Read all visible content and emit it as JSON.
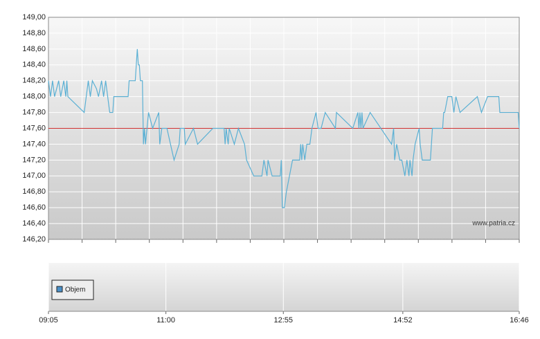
{
  "chart_data": {
    "type": "line",
    "x": [
      "09:05",
      "09:07",
      "09:09",
      "09:11",
      "09:13",
      "09:15",
      "09:17",
      "09:20",
      "09:22",
      "09:23",
      "09:24",
      "09:40",
      "09:44",
      "09:46",
      "09:48",
      "09:52",
      "09:54",
      "09:57",
      "09:59",
      "10:01",
      "10:03",
      "10:05",
      "10:08",
      "10:09",
      "10:23",
      "10:24",
      "10:30",
      "10:32",
      "10:33",
      "10:34",
      "10:35",
      "10:37",
      "10:38",
      "10:39",
      "10:40",
      "10:43",
      "10:47",
      "10:53",
      "10:54",
      "10:56",
      "11:01",
      "11:08",
      "11:13",
      "11:14",
      "11:18",
      "11:19",
      "11:27",
      "11:31",
      "11:46",
      "11:57",
      "11:58",
      "11:59",
      "12:01",
      "12:02",
      "12:07",
      "12:11",
      "12:17",
      "12:19",
      "12:26",
      "12:34",
      "12:36",
      "12:39",
      "12:40",
      "12:44",
      "12:52",
      "12:53",
      "12:54",
      "12:56",
      "12:58",
      "13:04",
      "13:11",
      "13:12",
      "13:13",
      "13:14",
      "13:16",
      "13:18",
      "13:21",
      "13:23",
      "13:27",
      "13:29",
      "13:32",
      "13:36",
      "13:46",
      "13:47",
      "14:03",
      "14:08",
      "14:09",
      "14:10",
      "14:11",
      "14:12",
      "14:13",
      "14:20",
      "14:41",
      "14:43",
      "14:44",
      "14:46",
      "14:49",
      "14:51",
      "14:54",
      "14:56",
      "14:58",
      "14:59",
      "15:01",
      "15:02",
      "15:04",
      "15:08",
      "15:09",
      "15:11",
      "15:19",
      "15:20",
      "15:21",
      "15:31",
      "15:32",
      "15:33",
      "15:36",
      "15:40",
      "15:42",
      "15:44",
      "15:48",
      "16:05",
      "16:09",
      "16:15",
      "16:26",
      "16:27",
      "16:45",
      "16:46"
    ],
    "values": [
      148.2,
      148.0,
      148.2,
      148.0,
      148.1,
      148.2,
      148.0,
      148.2,
      148.0,
      148.2,
      148.0,
      147.8,
      148.2,
      148.0,
      148.2,
      148.1,
      148.0,
      148.2,
      148.0,
      148.2,
      148.0,
      147.8,
      147.8,
      148.0,
      148.0,
      148.2,
      148.2,
      148.6,
      148.4,
      148.4,
      148.2,
      148.2,
      147.4,
      147.6,
      147.4,
      147.8,
      147.6,
      147.8,
      147.4,
      147.6,
      147.6,
      147.2,
      147.4,
      147.6,
      147.6,
      147.4,
      147.6,
      147.4,
      147.6,
      147.6,
      147.4,
      147.6,
      147.4,
      147.6,
      147.4,
      147.6,
      147.4,
      147.2,
      147.0,
      147.0,
      147.2,
      147.0,
      147.2,
      147.0,
      147.0,
      147.2,
      146.6,
      146.6,
      146.8,
      147.2,
      147.2,
      147.4,
      147.2,
      147.4,
      147.2,
      147.4,
      147.4,
      147.6,
      147.8,
      147.6,
      147.6,
      147.8,
      147.6,
      147.8,
      147.6,
      147.8,
      147.6,
      147.8,
      147.6,
      147.8,
      147.6,
      147.8,
      147.4,
      147.6,
      147.2,
      147.4,
      147.2,
      147.2,
      147.0,
      147.2,
      147.0,
      147.2,
      147.0,
      147.2,
      147.4,
      147.6,
      147.4,
      147.2,
      147.2,
      147.4,
      147.6,
      147.6,
      147.8,
      147.8,
      148.0,
      148.0,
      147.8,
      148.0,
      147.8,
      148.0,
      147.8,
      148.0,
      148.0,
      147.8,
      147.8,
      147.6
    ],
    "color": "#5ab0d4",
    "reference_line": 147.6,
    "reference_color": "#d03030",
    "xlim": [
      "09:05",
      "16:46"
    ],
    "xticks": [
      "09:05",
      "11:00",
      "12:55",
      "14:52",
      "16:46"
    ],
    "ylim": [
      146.2,
      149.0
    ],
    "yticks": [
      {
        "value": 146.2,
        "label": "146,20"
      },
      {
        "value": 146.4,
        "label": "146,40"
      },
      {
        "value": 146.6,
        "label": "146,60"
      },
      {
        "value": 146.8,
        "label": "146,80"
      },
      {
        "value": 147.0,
        "label": "147,00"
      },
      {
        "value": 147.2,
        "label": "147,20"
      },
      {
        "value": 147.4,
        "label": "147,40"
      },
      {
        "value": 147.6,
        "label": "147,60"
      },
      {
        "value": 147.8,
        "label": "147,80"
      },
      {
        "value": 148.0,
        "label": "148,00"
      },
      {
        "value": 148.2,
        "label": "148,20"
      },
      {
        "value": 148.4,
        "label": "148,40"
      },
      {
        "value": 148.6,
        "label": "148,60"
      },
      {
        "value": 148.8,
        "label": "148,80"
      },
      {
        "value": 149.0,
        "label": "149,00"
      }
    ],
    "grid": true,
    "watermark": "www.patria.cz",
    "volume": {
      "name": "Objem",
      "color": "#4a90c8"
    }
  }
}
